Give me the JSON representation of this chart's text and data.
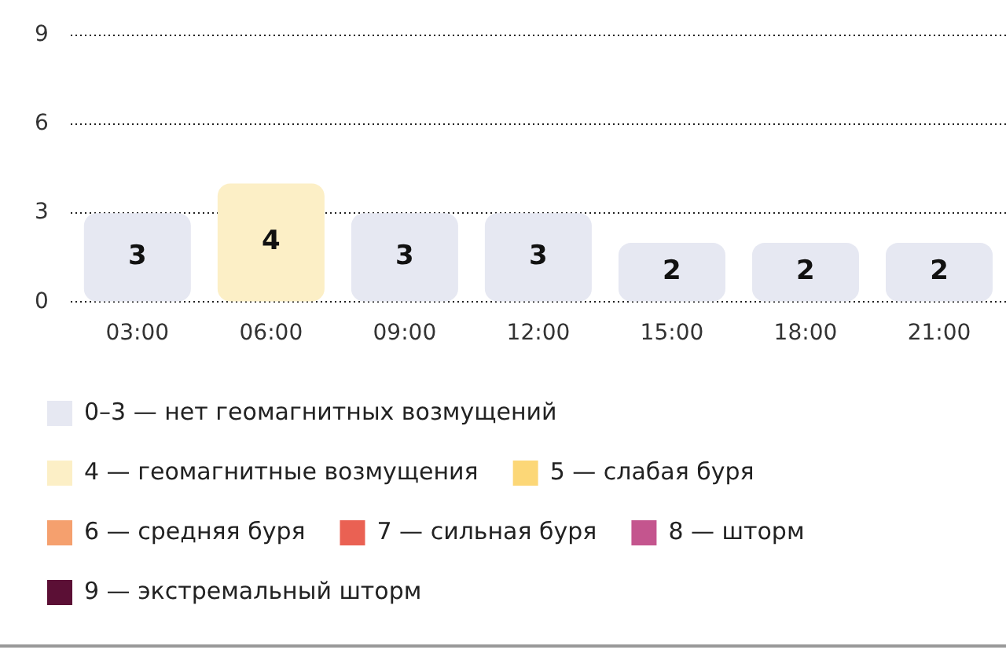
{
  "chart_data": {
    "type": "bar",
    "stacked": true,
    "categories": [
      "03:00",
      "06:00",
      "09:00",
      "12:00",
      "15:00",
      "18:00",
      "21:00"
    ],
    "series": [
      {
        "name": "0–3 — нет геомагнитных возмущений",
        "color": "#e6e8f2",
        "values": [
          3,
          null,
          3,
          3,
          2,
          2,
          2
        ]
      },
      {
        "name": "4 — геомагнитные возмущения",
        "color": "#fcefc6",
        "values": [
          null,
          4,
          null,
          null,
          null,
          null,
          null
        ]
      },
      {
        "name": "5 — слабая буря",
        "color": "#fcd777",
        "values": [
          null,
          null,
          null,
          null,
          null,
          null,
          null
        ]
      },
      {
        "name": "6 — средняя буря",
        "color": "#f5a06e",
        "values": [
          null,
          null,
          null,
          null,
          null,
          null,
          null
        ]
      },
      {
        "name": "7 — сильная буря",
        "color": "#ea6153",
        "values": [
          null,
          null,
          null,
          null,
          null,
          null,
          null
        ]
      },
      {
        "name": "8 — шторм",
        "color": "#c4558e",
        "values": [
          null,
          null,
          null,
          null,
          null,
          null,
          null
        ]
      },
      {
        "name": "9 — экстремальный шторм",
        "color": "#5b0f35",
        "values": [
          null,
          null,
          null,
          null,
          null,
          null,
          null
        ]
      }
    ],
    "ylim": [
      0,
      9
    ],
    "yticks": [
      0,
      3,
      6,
      9
    ],
    "grid": "y",
    "legend": "bottom",
    "data_labels": true
  }
}
